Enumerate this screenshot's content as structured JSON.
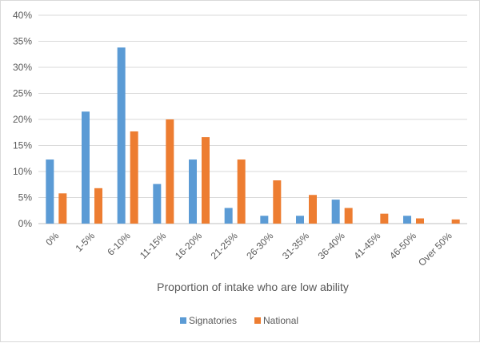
{
  "chart_data": {
    "type": "bar",
    "title": "",
    "xlabel": "Proportion of intake who are low ability",
    "ylabel": "",
    "ylim": [
      0,
      40
    ],
    "y_ticks": [
      "0%",
      "5%",
      "10%",
      "15%",
      "20%",
      "25%",
      "30%",
      "35%",
      "40%"
    ],
    "grid": "horizontal",
    "legend_position": "bottom",
    "categories": [
      "0%",
      "1-5%",
      "6-10%",
      "11-15%",
      "16-20%",
      "21-25%",
      "26-30%",
      "31-35%",
      "36-40%",
      "41-45%",
      "46-50%",
      "Over 50%"
    ],
    "series": [
      {
        "name": "Signatories",
        "color": "#5b9bd5",
        "values": [
          12.3,
          21.5,
          33.8,
          7.6,
          12.3,
          3.0,
          1.5,
          1.5,
          4.6,
          0,
          1.5,
          0
        ]
      },
      {
        "name": "National",
        "color": "#ed7d31",
        "values": [
          5.8,
          6.8,
          17.7,
          20.0,
          16.6,
          12.3,
          8.3,
          5.5,
          3.0,
          1.9,
          1.0,
          0.8
        ]
      }
    ]
  }
}
